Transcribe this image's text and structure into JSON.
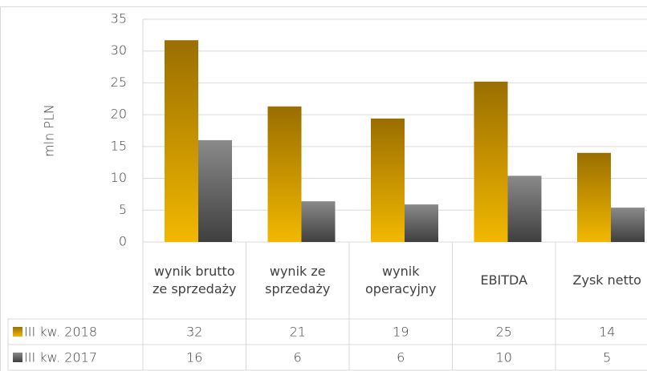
{
  "chart_data": {
    "type": "bar",
    "y_label": "mln PLN",
    "categories": [
      "wynik brutto ze sprzedaży",
      "wynik ze sprzedaży",
      "wynik operacyjny",
      "EBITDA",
      "Zysk netto"
    ],
    "series": [
      {
        "name": "III kw. 2018",
        "color": "#e8ad00",
        "values": [
          31.7,
          21.3,
          19.4,
          25.2,
          14
        ],
        "value_labels": [
          "32",
          "21",
          "19",
          "25",
          "14"
        ]
      },
      {
        "name": "III kw. 2017",
        "color": "#595959",
        "values": [
          16,
          6.4,
          5.9,
          10.4,
          5.4
        ],
        "value_labels": [
          "16",
          "6",
          "6",
          "10",
          "5"
        ]
      }
    ],
    "ylim": [
      0,
      35
    ],
    "yticks": [
      0,
      5,
      10,
      15,
      20,
      25,
      30,
      35
    ],
    "grid": true
  }
}
